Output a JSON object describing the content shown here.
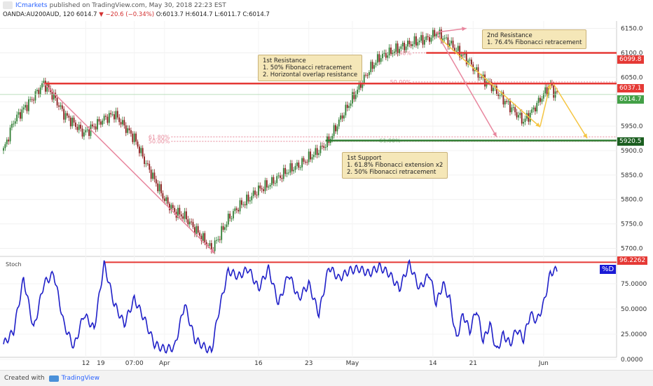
{
  "header": {
    "publisher": "ICmarkets",
    "published_text": "published on TradingView.com, May 30, 2018 22:23 EST",
    "symbol_line": "OANDA:AU200AUD, 120",
    "last": "6014.7",
    "change": "▼ −20.6 (−0.34%)",
    "o": "O:6013.7",
    "h": "H:6014.7",
    "l": "L:6011.7",
    "c": "C:6014.7"
  },
  "annotations": {
    "first_resistance": "1st Resistance\n1. 50% Fibonacci retracement\n2. Horizontal overlap resistance",
    "second_resistance": "2nd Resistance\n1. 76.4% Fibonacci retracement",
    "first_support": "1st Support\n1. 61.8% Fibonacci extension x2\n2. 50% Fibonacci retracement",
    "fib_labels": [
      "76.40%",
      "50.00%",
      "61.80%",
      "50.00%",
      "61.80%"
    ]
  },
  "price_labels": {
    "second_resistance": "6099.8",
    "first_resistance": "6037.1",
    "last_price": "6014.7",
    "first_support": "5920.5",
    "stoch_level": "96.2262"
  },
  "stoch": {
    "title": "Stoch",
    "legend": "%D"
  },
  "footer": {
    "created_with": "Created with",
    "brand": "TradingView"
  },
  "colors": {
    "resistance_line": "#e53935",
    "support_line": "#2e7d32",
    "stoch_line": "#1f1fc8",
    "candle_up": "#2e7d32",
    "candle_down": "#8b1a1a",
    "arrow_pink": "#e8869e",
    "arrow_yellow": "#f5c542",
    "note_bg": "#f5e7b8"
  },
  "chart_data": {
    "type": "candlestick",
    "price_axis": {
      "ticks": [
        6150.0,
        6100.0,
        6050.0,
        6000.0,
        5950.0,
        5900.0,
        5850.0,
        5800.0,
        5750.0,
        5700.0
      ],
      "range": [
        5685,
        6165
      ]
    },
    "x_ticks": [
      "12",
      "19",
      "07:00",
      "Apr",
      "16",
      "23",
      "May",
      "14",
      "21",
      "Jun"
    ],
    "stoch_axis": {
      "ticks": [
        75.0,
        50.0,
        25.0,
        0.0
      ],
      "range": [
        0,
        100
      ]
    },
    "levels": [
      {
        "value": 6099.8,
        "label": "2nd Resistance"
      },
      {
        "value": 6037.1,
        "label": "1st Resistance"
      },
      {
        "value": 5920.5,
        "label": "1st Support"
      }
    ],
    "stoch_level": 96.2262,
    "price_path": [
      [
        0,
        5900
      ],
      [
        3,
        5960
      ],
      [
        6,
        5985
      ],
      [
        9,
        6010
      ],
      [
        12,
        6038
      ],
      [
        15,
        6010
      ],
      [
        18,
        5975
      ],
      [
        21,
        5955
      ],
      [
        24,
        5935
      ],
      [
        27,
        5950
      ],
      [
        30,
        5965
      ],
      [
        33,
        5975
      ],
      [
        36,
        5950
      ],
      [
        39,
        5925
      ],
      [
        42,
        5880
      ],
      [
        45,
        5840
      ],
      [
        48,
        5800
      ],
      [
        51,
        5775
      ],
      [
        54,
        5765
      ],
      [
        57,
        5740
      ],
      [
        60,
        5715
      ],
      [
        62,
        5698
      ],
      [
        64,
        5720
      ],
      [
        67,
        5760
      ],
      [
        70,
        5785
      ],
      [
        73,
        5800
      ],
      [
        76,
        5820
      ],
      [
        79,
        5830
      ],
      [
        82,
        5845
      ],
      [
        85,
        5860
      ],
      [
        88,
        5870
      ],
      [
        91,
        5885
      ],
      [
        94,
        5900
      ],
      [
        97,
        5920
      ],
      [
        100,
        5960
      ],
      [
        103,
        5995
      ],
      [
        106,
        6030
      ],
      [
        109,
        6065
      ],
      [
        112,
        6090
      ],
      [
        115,
        6100
      ],
      [
        118,
        6110
      ],
      [
        121,
        6118
      ],
      [
        124,
        6125
      ],
      [
        127,
        6130
      ],
      [
        129,
        6142
      ],
      [
        131,
        6130
      ],
      [
        133,
        6120
      ],
      [
        135,
        6105
      ],
      [
        137,
        6095
      ],
      [
        139,
        6080
      ],
      [
        141,
        6060
      ],
      [
        143,
        6045
      ],
      [
        145,
        6035
      ],
      [
        147,
        6020
      ],
      [
        149,
        6005
      ],
      [
        151,
        5990
      ],
      [
        153,
        5975
      ],
      [
        155,
        5960
      ],
      [
        157,
        5975
      ],
      [
        159,
        5995
      ],
      [
        161,
        6015
      ],
      [
        163,
        6035
      ],
      [
        164,
        6020
      ],
      [
        165,
        6014.7
      ]
    ],
    "stoch_path": [
      [
        0,
        15
      ],
      [
        3,
        28
      ],
      [
        6,
        80
      ],
      [
        9,
        30
      ],
      [
        12,
        75
      ],
      [
        15,
        85
      ],
      [
        18,
        35
      ],
      [
        21,
        12
      ],
      [
        24,
        45
      ],
      [
        27,
        30
      ],
      [
        30,
        95
      ],
      [
        33,
        55
      ],
      [
        36,
        35
      ],
      [
        39,
        60
      ],
      [
        42,
        40
      ],
      [
        45,
        15
      ],
      [
        48,
        10
      ],
      [
        51,
        12
      ],
      [
        54,
        55
      ],
      [
        57,
        20
      ],
      [
        60,
        12
      ],
      [
        62,
        8
      ],
      [
        64,
        45
      ],
      [
        67,
        88
      ],
      [
        70,
        82
      ],
      [
        73,
        90
      ],
      [
        76,
        70
      ],
      [
        79,
        90
      ],
      [
        82,
        55
      ],
      [
        85,
        85
      ],
      [
        88,
        60
      ],
      [
        91,
        75
      ],
      [
        94,
        45
      ],
      [
        97,
        92
      ],
      [
        100,
        80
      ],
      [
        103,
        88
      ],
      [
        106,
        90
      ],
      [
        109,
        85
      ],
      [
        112,
        92
      ],
      [
        115,
        85
      ],
      [
        118,
        70
      ],
      [
        121,
        95
      ],
      [
        124,
        70
      ],
      [
        127,
        85
      ],
      [
        129,
        55
      ],
      [
        131,
        75
      ],
      [
        133,
        60
      ],
      [
        135,
        20
      ],
      [
        137,
        45
      ],
      [
        139,
        28
      ],
      [
        141,
        50
      ],
      [
        143,
        18
      ],
      [
        145,
        35
      ],
      [
        147,
        8
      ],
      [
        149,
        25
      ],
      [
        151,
        15
      ],
      [
        153,
        30
      ],
      [
        155,
        20
      ],
      [
        157,
        45
      ],
      [
        159,
        38
      ],
      [
        161,
        55
      ],
      [
        163,
        85
      ],
      [
        164,
        88
      ],
      [
        165,
        88
      ]
    ]
  }
}
